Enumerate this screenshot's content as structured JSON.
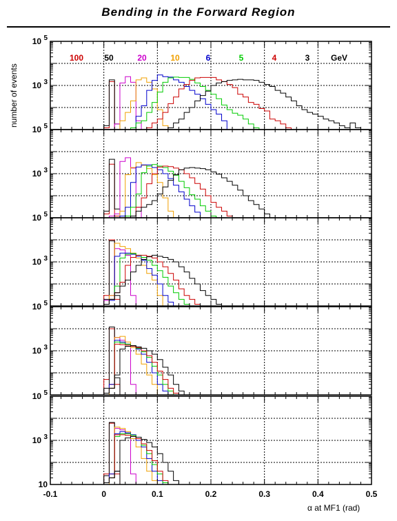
{
  "chart_data": {
    "type": "histogram",
    "title": "Bending in the Forward Region",
    "ylabel": "number of events",
    "xlabel": "α at MF1 (rad)",
    "xlim": [
      -0.1,
      0.5
    ],
    "x_ticks": [
      "-0.1",
      "0",
      "0.1",
      "0.2",
      "0.3",
      "0.4",
      "0.5"
    ],
    "y_scale": "log",
    "ylim": [
      10,
      100000
    ],
    "y_tick_labels": {
      "top": "10^5",
      "mid": "10^3",
      "bottom": "10"
    },
    "grid": true,
    "bin_width": 0.01,
    "legend": {
      "placement": "top",
      "unit": "GeV",
      "entries": [
        {
          "label": "100",
          "color": "#cc0000"
        },
        {
          "label": "50",
          "color": "#000000"
        },
        {
          "label": "20",
          "color": "#cc00cc"
        },
        {
          "label": "10",
          "color": "#f0a000"
        },
        {
          "label": "6",
          "color": "#0000cc"
        },
        {
          "label": "5",
          "color": "#00cc00"
        },
        {
          "label": "4",
          "color": "#cc0000"
        },
        {
          "label": "3",
          "color": "#000000"
        }
      ]
    },
    "panels": [
      {
        "panel": 1,
        "series": [
          {
            "name": "100 GeV",
            "color": "#cc0000",
            "x0": 0.0,
            "counts": [
              12,
              1500,
              10
            ]
          },
          {
            "name": "50 GeV",
            "color": "#000000",
            "x0": 0.0,
            "counts": [
              15,
              1800,
              18,
              10
            ]
          },
          {
            "name": "20 GeV",
            "color": "#cc00cc",
            "x0": 0.02,
            "counts": [
              18,
              1300,
              2500,
              1400,
              25,
              10
            ]
          },
          {
            "name": "10 GeV",
            "color": "#f0a000",
            "x0": 0.02,
            "counts": [
              10,
              25,
              60,
              200,
              1800,
              2200,
              1400,
              700,
              80,
              15
            ]
          },
          {
            "name": "6 GeV",
            "color": "#0000cc",
            "x0": 0.05,
            "counts": [
              12,
              40,
              120,
              600,
              1700,
              3000,
              2500,
              2400,
              1800,
              1400,
              900,
              600,
              400,
              250,
              140,
              80,
              50,
              25
            ]
          },
          {
            "name": "5 GeV",
            "color": "#00cc00",
            "x0": 0.05,
            "counts": [
              12,
              20,
              25,
              60,
              170,
              500,
              1400,
              2200,
              2400,
              2300,
              2300,
              1900,
              1300,
              900,
              600,
              400,
              250,
              130,
              80,
              55,
              45,
              30,
              18,
              12
            ]
          },
          {
            "name": "4 GeV",
            "color": "#cc0000",
            "x0": 0.08,
            "counts": [
              12,
              20,
              30,
              60,
              150,
              300,
              700,
              1100,
              1700,
              2200,
              2300,
              2300,
              2300,
              1800,
              1500,
              1100,
              800,
              400,
              300,
              170,
              140,
              90,
              70,
              30,
              25,
              18,
              12
            ]
          },
          {
            "name": "3 GeV",
            "color": "#000000",
            "x0": 0.12,
            "counts": [
              12,
              20,
              30,
              60,
              100,
              200,
              350,
              550,
              1000,
              1300,
              1500,
              1700,
              1800,
              1900,
              1800,
              1800,
              1700,
              1400,
              1100,
              900,
              600,
              450,
              300,
              200,
              120,
              80,
              60,
              50,
              40,
              30,
              25,
              20,
              15,
              12,
              20,
              12
            ]
          }
        ]
      },
      {
        "panel": 2,
        "series": [
          {
            "name": "100 GeV",
            "color": "#cc0000",
            "x0": 0.0,
            "counts": [
              15,
              2700,
              12
            ]
          },
          {
            "name": "50 GeV",
            "color": "#000000",
            "x0": 0.0,
            "counts": [
              20,
              4500,
              25
            ]
          },
          {
            "name": "20 GeV",
            "color": "#cc00cc",
            "x0": 0.01,
            "counts": [
              12,
              15,
              3600,
              5300,
              1800,
              30,
              10
            ]
          },
          {
            "name": "10 GeV",
            "color": "#f0a000",
            "x0": 0.02,
            "counts": [
              10,
              20,
              900,
              1900,
              3200,
              2400,
              1700,
              900,
              400,
              80,
              20
            ]
          },
          {
            "name": "6 GeV",
            "color": "#0000cc",
            "x0": 0.03,
            "counts": [
              12,
              30,
              400,
              2000,
              2500,
              2500,
              1900,
              1500,
              1000,
              600,
              300,
              150,
              70,
              35,
              18
            ]
          },
          {
            "name": "5 GeV",
            "color": "#00cc00",
            "x0": 0.04,
            "counts": [
              12,
              30,
              120,
              1100,
              2200,
              2600,
              2200,
              1900,
              1300,
              850,
              450,
              230,
              110,
              70,
              35,
              20,
              12
            ]
          },
          {
            "name": "4 GeV",
            "color": "#cc0000",
            "x0": 0.05,
            "counts": [
              12,
              30,
              80,
              350,
              1000,
              2000,
              2200,
              2100,
              1800,
              1500,
              1000,
              650,
              360,
              200,
              100,
              50,
              30,
              20,
              12
            ]
          },
          {
            "name": "3 GeV",
            "color": "#000000",
            "x0": 0.05,
            "counts": [
              12,
              20,
              30,
              40,
              60,
              120,
              250,
              500,
              900,
              1500,
              1800,
              1900,
              1800,
              1700,
              1500,
              1200,
              950,
              650,
              450,
              300,
              180,
              100,
              60,
              40,
              25,
              15
            ]
          }
        ]
      },
      {
        "panel": 3,
        "series": [
          {
            "name": "100 GeV",
            "color": "#cc0000",
            "x0": 0.0,
            "counts": [
              30,
              10000,
              20
            ]
          },
          {
            "name": "50 GeV",
            "color": "#000000",
            "x0": 0.0,
            "counts": [
              20,
              9000,
              30
            ]
          },
          {
            "name": "20 GeV",
            "color": "#cc00cc",
            "x0": 0.0,
            "counts": [
              18,
              30,
              4000,
              3500,
              2000,
              30
            ]
          },
          {
            "name": "10 GeV",
            "color": "#f0a000",
            "x0": 0.0,
            "counts": [
              12,
              30,
              7000,
              5000,
              4000,
              2500,
              1500,
              700,
              300,
              150,
              30
            ]
          },
          {
            "name": "6 GeV",
            "color": "#0000cc",
            "x0": 0.0,
            "counts": [
              12,
              18,
              1800,
              2500,
              2500,
              2200,
              1800,
              1200,
              500,
              250,
              100,
              30,
              15
            ]
          },
          {
            "name": "5 GeV",
            "color": "#00cc00",
            "x0": 0.0,
            "counts": [
              12,
              20,
              80,
              1500,
              2200,
              2400,
              2000,
              1600,
              1200,
              700,
              400,
              200,
              80,
              40,
              20,
              12
            ]
          },
          {
            "name": "4 GeV",
            "color": "#cc0000",
            "x0": 0.0,
            "counts": [
              12,
              20,
              40,
              120,
              700,
              1600,
              2000,
              2000,
              1800,
              1500,
              1000,
              600,
              300,
              150,
              60,
              30,
              20,
              12
            ]
          },
          {
            "name": "3 GeV",
            "color": "#000000",
            "x0": 0.0,
            "counts": [
              12,
              20,
              40,
              80,
              150,
              350,
              700,
              1300,
              1700,
              2000,
              1800,
              1600,
              1300,
              1000,
              600,
              350,
              180,
              100,
              50,
              30,
              20,
              12
            ]
          }
        ]
      },
      {
        "panel": 4,
        "series": [
          {
            "name": "100 GeV",
            "color": "#cc0000",
            "x0": 0.0,
            "counts": [
              50,
              10000,
              30
            ]
          },
          {
            "name": "50 GeV",
            "color": "#000000",
            "x0": 0.0,
            "counts": [
              20,
              12000,
              60
            ]
          },
          {
            "name": "20 GeV",
            "color": "#cc00cc",
            "x0": 0.0,
            "counts": [
              12,
              30,
              4000,
              3000,
              2000,
              30
            ]
          },
          {
            "name": "10 GeV",
            "color": "#f0a000",
            "x0": 0.0,
            "counts": [
              10,
              30,
              4000,
              4500,
              2500,
              1400,
              700,
              250,
              80,
              30
            ]
          },
          {
            "name": "6 GeV",
            "color": "#0000cc",
            "x0": 0.0,
            "counts": [
              12,
              30,
              3000,
              2500,
              2000,
              1700,
              1200,
              700,
              300,
              100,
              30,
              15
            ]
          },
          {
            "name": "5 GeV",
            "color": "#00cc00",
            "x0": 0.0,
            "counts": [
              12,
              20,
              2500,
              2200,
              2000,
              1700,
              1300,
              900,
              500,
              200,
              80,
              30,
              15
            ]
          },
          {
            "name": "4 GeV",
            "color": "#cc0000",
            "x0": 0.0,
            "counts": [
              12,
              20,
              2000,
              1900,
              1800,
              1600,
              1400,
              1000,
              600,
              300,
              120,
              50,
              20,
              12
            ]
          },
          {
            "name": "3 GeV",
            "color": "#000000",
            "x0": 0.0,
            "counts": [
              12,
              20,
              80,
              1200,
              1600,
              1700,
              1500,
              1300,
              1000,
              700,
              400,
              180,
              80,
              30,
              15
            ]
          }
        ]
      },
      {
        "panel": 5,
        "series": [
          {
            "name": "100 GeV",
            "color": "#cc0000",
            "x0": 0.0,
            "counts": [
              30,
              6000,
              30
            ]
          },
          {
            "name": "50 GeV",
            "color": "#000000",
            "x0": 0.0,
            "counts": [
              25,
              6500,
              40
            ]
          },
          {
            "name": "20 GeV",
            "color": "#cc00cc",
            "x0": 0.0,
            "counts": [
              12,
              30,
              3500,
              3000,
              2000,
              30
            ]
          },
          {
            "name": "10 GeV",
            "color": "#f0a000",
            "x0": 0.0,
            "counts": [
              10,
              30,
              4000,
              3500,
              2500,
              1200,
              500,
              150,
              40,
              15
            ]
          },
          {
            "name": "6 GeV",
            "color": "#0000cc",
            "x0": 0.0,
            "counts": [
              12,
              30,
              2000,
              2500,
              2200,
              1800,
              1000,
              500,
              150,
              40,
              15
            ]
          },
          {
            "name": "5 GeV",
            "color": "#00cc00",
            "x0": 0.0,
            "counts": [
              12,
              20,
              1500,
              2000,
              2000,
              1700,
              1200,
              600,
              250,
              80,
              30,
              12
            ]
          },
          {
            "name": "4 GeV",
            "color": "#cc0000",
            "x0": 0.0,
            "counts": [
              12,
              20,
              1800,
              1800,
              1700,
              1500,
              1200,
              700,
              350,
              120,
              40,
              15
            ]
          },
          {
            "name": "3 GeV",
            "color": "#000000",
            "x0": 0.0,
            "counts": [
              12,
              20,
              40,
              1000,
              1300,
              1500,
              1400,
              1100,
              800,
              500,
              250,
              100,
              40,
              15
            ]
          }
        ]
      }
    ]
  }
}
